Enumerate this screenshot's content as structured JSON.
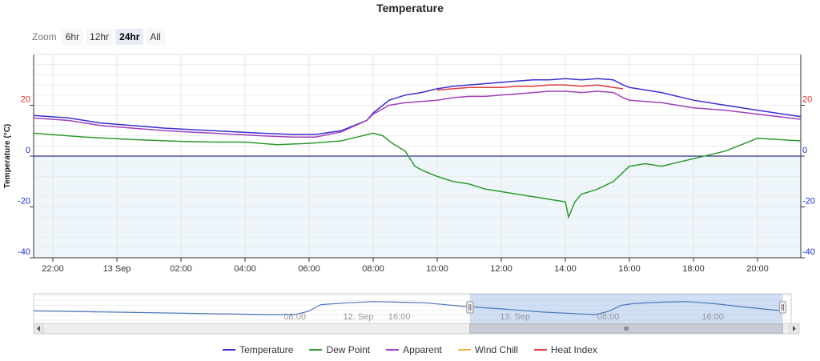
{
  "title": "Temperature",
  "zoom": {
    "label": "Zoom",
    "buttons": [
      "6hr",
      "12hr",
      "24hr",
      "All"
    ],
    "selected": "24hr"
  },
  "chart_data": {
    "type": "line",
    "title": "Temperature",
    "ylabel": "Temperature (°C)",
    "xlabel": "",
    "ylim": [
      -40,
      40
    ],
    "xlim_hours": [
      -2.6,
      21.35
    ],
    "y_ticks": [
      20,
      0,
      -20,
      -40
    ],
    "x_ticks": [
      "22:00",
      "13 Sep",
      "02:00",
      "04:00",
      "06:00",
      "08:00",
      "10:00",
      "12:00",
      "14:00",
      "16:00",
      "18:00",
      "20:00"
    ],
    "grid": true,
    "legend_position": "bottom",
    "series": [
      {
        "name": "Temperature",
        "color": "#3a2fd0",
        "x": [
          -2.6,
          -1.5,
          -0.5,
          0.5,
          1.5,
          3,
          4.5,
          5.5,
          6.2,
          7,
          7.8,
          8,
          8.5,
          9,
          9.5,
          10,
          10.5,
          11,
          11.5,
          12,
          12.5,
          13,
          13.5,
          14,
          14.5,
          15,
          15.5,
          15.8,
          16,
          17,
          18,
          19,
          20,
          21.35
        ],
        "y": [
          16,
          15,
          13,
          12,
          11,
          10,
          9,
          8.5,
          8.5,
          10,
          14,
          17,
          22,
          24,
          25,
          26.5,
          27.5,
          28,
          28.5,
          29,
          29.5,
          30,
          30,
          30.5,
          30,
          30.5,
          30,
          28,
          27,
          25,
          22,
          20,
          18,
          15.5
        ]
      },
      {
        "name": "Dew Point",
        "color": "#2e9a2e",
        "x": [
          -2.6,
          -1,
          0.5,
          2,
          3,
          4,
          5,
          6,
          7,
          7.5,
          8,
          8.3,
          8.6,
          9,
          9.3,
          9.6,
          10,
          10.5,
          11,
          11.5,
          12,
          12.5,
          13,
          13.5,
          14,
          14.1,
          14.3,
          14.5,
          15,
          15.5,
          16,
          16.5,
          17,
          18,
          19,
          20,
          21.35
        ],
        "y": [
          9,
          7.5,
          6.5,
          5.8,
          5.5,
          5.5,
          4.5,
          5,
          6,
          7.5,
          9,
          8,
          5,
          2,
          -4,
          -6,
          -8,
          -10,
          -11,
          -13,
          -14,
          -15,
          -16,
          -17,
          -18,
          -24,
          -18,
          -15,
          -13,
          -10,
          -4,
          -3,
          -4,
          -1,
          2,
          7,
          6
        ]
      },
      {
        "name": "Apparent",
        "color": "#a040b8",
        "x": [
          -2.6,
          -1.5,
          -0.5,
          0.5,
          1.5,
          3,
          4.5,
          5.5,
          6.2,
          7,
          7.8,
          8,
          8.5,
          9,
          9.5,
          10,
          10.5,
          11,
          11.5,
          12,
          12.5,
          13,
          13.5,
          14,
          14.5,
          15,
          15.5,
          15.8,
          16,
          17,
          18,
          19,
          20,
          21.35
        ],
        "y": [
          15,
          14,
          12,
          11,
          10,
          9,
          8,
          7.5,
          7.5,
          9.5,
          14,
          16.5,
          20,
          21,
          21.5,
          22,
          23,
          23.5,
          23.5,
          24,
          24.5,
          25,
          25.5,
          25.5,
          25,
          25.5,
          25,
          23,
          22,
          21,
          19,
          18,
          16.5,
          14.5
        ]
      },
      {
        "name": "Wind Chill",
        "color": "#f5b041",
        "x": [],
        "y": []
      },
      {
        "name": "Heat Index",
        "color": "#e03a3a",
        "x": [
          10,
          10.5,
          11,
          11.5,
          12,
          12.5,
          13,
          13.5,
          14,
          14.5,
          15,
          15.5,
          15.8
        ],
        "y": [
          26,
          26.5,
          27,
          27,
          27,
          27.5,
          27.5,
          28,
          28,
          27.5,
          28,
          27,
          26.5
        ]
      }
    ]
  },
  "navigator": {
    "labels": [
      "12. Sep",
      "08:00",
      "16:00",
      "13. Sep",
      "08:00",
      "16:00"
    ],
    "label_hours": [
      -12,
      8,
      16,
      0,
      8,
      16
    ],
    "label_day_offset": [
      0,
      -24,
      -24,
      0,
      0,
      0
    ],
    "range_hours": [
      -36,
      22
    ],
    "selected_hours": [
      -2.6,
      21.35
    ],
    "series_x": [
      -36,
      -30,
      -24,
      -18,
      -16,
      -15,
      -14,
      -12,
      -10,
      -6,
      -3,
      0,
      3,
      6,
      7,
      8,
      9,
      10,
      12,
      14,
      16,
      18,
      21.35
    ],
    "series_y": [
      15,
      13,
      11,
      9,
      9,
      14,
      25,
      28,
      30,
      28,
      22,
      18,
      13,
      10,
      9,
      14,
      24,
      27,
      29,
      30,
      27,
      22,
      15
    ]
  },
  "legend": [
    {
      "name": "Temperature",
      "color": "#3a2fd0"
    },
    {
      "name": "Dew Point",
      "color": "#2e9a2e"
    },
    {
      "name": "Apparent",
      "color": "#a040b8"
    },
    {
      "name": "Wind Chill",
      "color": "#f5b041"
    },
    {
      "name": "Heat Index",
      "color": "#e03a3a"
    }
  ]
}
